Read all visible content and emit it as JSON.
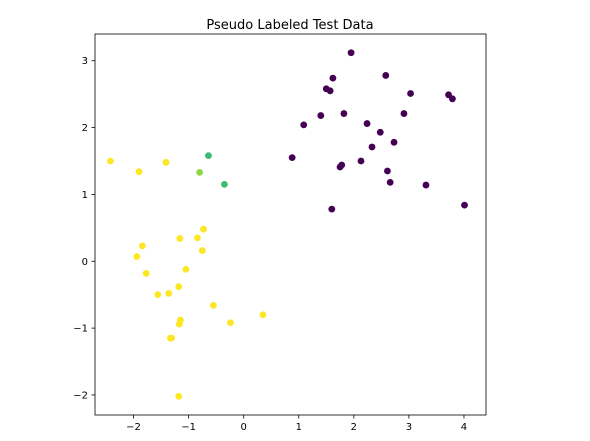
{
  "chart_data": {
    "type": "scatter",
    "title": "Pseudo Labeled Test Data",
    "xlabel": "",
    "ylabel": "",
    "xlim": [
      -2.7,
      4.4
    ],
    "ylim": [
      -2.3,
      3.4
    ],
    "xticks": [
      -2,
      -1,
      0,
      1,
      2,
      3,
      4
    ],
    "yticks": [
      -2,
      -1,
      0,
      1,
      2,
      3
    ],
    "xtick_labels": [
      "−2",
      "−1",
      "0",
      "1",
      "2",
      "3",
      "4"
    ],
    "ytick_labels": [
      "−2",
      "−1",
      "0",
      "1",
      "2",
      "3"
    ],
    "grid": false,
    "legend": "none",
    "colors": {
      "purple": "#440154",
      "green": "#3dbc74",
      "lime": "#8fd744",
      "yellow": "#fde725"
    },
    "points": [
      {
        "x": 1.95,
        "y": 3.12,
        "color": "purple"
      },
      {
        "x": 2.58,
        "y": 2.78,
        "color": "purple"
      },
      {
        "x": 1.62,
        "y": 2.74,
        "color": "purple"
      },
      {
        "x": 1.5,
        "y": 2.58,
        "color": "purple"
      },
      {
        "x": 1.57,
        "y": 2.55,
        "color": "purple"
      },
      {
        "x": 3.03,
        "y": 2.51,
        "color": "purple"
      },
      {
        "x": 3.72,
        "y": 2.49,
        "color": "purple"
      },
      {
        "x": 3.79,
        "y": 2.43,
        "color": "purple"
      },
      {
        "x": 1.4,
        "y": 2.18,
        "color": "purple"
      },
      {
        "x": 1.82,
        "y": 2.21,
        "color": "purple"
      },
      {
        "x": 2.91,
        "y": 2.21,
        "color": "purple"
      },
      {
        "x": 1.09,
        "y": 2.04,
        "color": "purple"
      },
      {
        "x": 2.24,
        "y": 2.06,
        "color": "purple"
      },
      {
        "x": 2.48,
        "y": 1.93,
        "color": "purple"
      },
      {
        "x": 2.73,
        "y": 1.78,
        "color": "purple"
      },
      {
        "x": 2.33,
        "y": 1.71,
        "color": "purple"
      },
      {
        "x": 0.88,
        "y": 1.55,
        "color": "purple"
      },
      {
        "x": 2.13,
        "y": 1.5,
        "color": "purple"
      },
      {
        "x": 1.78,
        "y": 1.44,
        "color": "purple"
      },
      {
        "x": 1.75,
        "y": 1.41,
        "color": "purple"
      },
      {
        "x": 2.61,
        "y": 1.35,
        "color": "purple"
      },
      {
        "x": 2.66,
        "y": 1.18,
        "color": "purple"
      },
      {
        "x": 3.31,
        "y": 1.14,
        "color": "purple"
      },
      {
        "x": 4.01,
        "y": 0.84,
        "color": "purple"
      },
      {
        "x": 1.6,
        "y": 0.78,
        "color": "purple"
      },
      {
        "x": -0.64,
        "y": 1.58,
        "color": "green"
      },
      {
        "x": -0.35,
        "y": 1.15,
        "color": "green"
      },
      {
        "x": -0.8,
        "y": 1.33,
        "color": "lime"
      },
      {
        "x": -2.42,
        "y": 1.5,
        "color": "yellow"
      },
      {
        "x": -1.41,
        "y": 1.48,
        "color": "yellow"
      },
      {
        "x": -1.9,
        "y": 1.34,
        "color": "yellow"
      },
      {
        "x": -0.73,
        "y": 0.48,
        "color": "yellow"
      },
      {
        "x": -0.84,
        "y": 0.35,
        "color": "yellow"
      },
      {
        "x": -1.16,
        "y": 0.34,
        "color": "yellow"
      },
      {
        "x": -1.84,
        "y": 0.23,
        "color": "yellow"
      },
      {
        "x": -0.75,
        "y": 0.16,
        "color": "yellow"
      },
      {
        "x": -1.94,
        "y": 0.07,
        "color": "yellow"
      },
      {
        "x": -1.05,
        "y": -0.12,
        "color": "yellow"
      },
      {
        "x": -1.77,
        "y": -0.18,
        "color": "yellow"
      },
      {
        "x": -1.18,
        "y": -0.38,
        "color": "yellow"
      },
      {
        "x": -1.36,
        "y": -0.48,
        "color": "yellow"
      },
      {
        "x": -1.56,
        "y": -0.5,
        "color": "yellow"
      },
      {
        "x": -0.55,
        "y": -0.66,
        "color": "yellow"
      },
      {
        "x": 0.35,
        "y": -0.8,
        "color": "yellow"
      },
      {
        "x": -1.15,
        "y": -0.88,
        "color": "yellow"
      },
      {
        "x": -0.24,
        "y": -0.92,
        "color": "yellow"
      },
      {
        "x": -1.17,
        "y": -0.94,
        "color": "yellow"
      },
      {
        "x": -1.33,
        "y": -1.15,
        "color": "yellow"
      },
      {
        "x": -1.31,
        "y": -1.15,
        "color": "yellow"
      },
      {
        "x": -1.18,
        "y": -2.02,
        "color": "yellow"
      }
    ]
  }
}
